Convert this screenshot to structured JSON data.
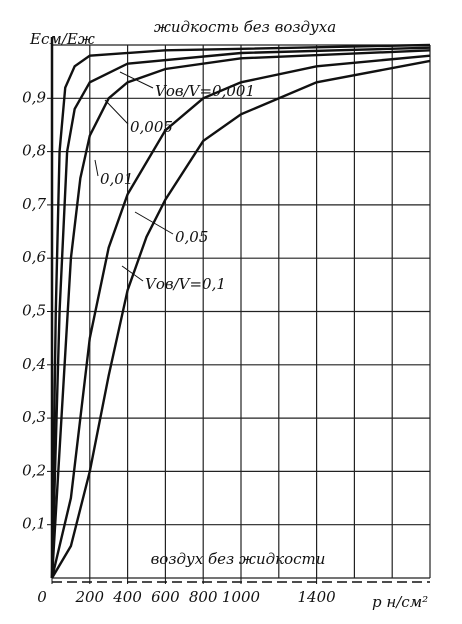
{
  "chart_data": {
    "type": "line",
    "title": "жидкость без воздуха",
    "y_label": "Eсм/Eж",
    "x_label": "p н/см²",
    "annotation": "воздух без жидкости",
    "xlim": [
      0,
      2000
    ],
    "ylim": [
      0,
      1.0
    ],
    "xticks": [
      0,
      200,
      400,
      600,
      800,
      1000,
      1400
    ],
    "xgrid": [
      0,
      200,
      400,
      600,
      800,
      1000,
      1200,
      1400,
      1600,
      1800,
      2000
    ],
    "yticks": [
      {
        "value": 0.1,
        "label": "0,1"
      },
      {
        "value": 0.2,
        "label": "0,2"
      },
      {
        "value": 0.3,
        "label": "0,3"
      },
      {
        "value": 0.4,
        "label": "0,4"
      },
      {
        "value": 0.5,
        "label": "0,5"
      },
      {
        "value": 0.6,
        "label": "0,6"
      },
      {
        "value": 0.7,
        "label": "0,7"
      },
      {
        "value": 0.8,
        "label": "0,8"
      },
      {
        "value": 0.9,
        "label": "0,9"
      }
    ],
    "ygrid": [
      0,
      0.1,
      0.2,
      0.3,
      0.4,
      0.5,
      0.6,
      0.7,
      0.8,
      0.9,
      1.0
    ],
    "grid": true,
    "color": "#111111",
    "series": [
      {
        "name": "Vов/V=0,001",
        "x": [
          0,
          20,
          40,
          70,
          120,
          200,
          600,
          2000
        ],
        "values": [
          0,
          0.5,
          0.8,
          0.92,
          0.96,
          0.98,
          0.99,
          1.0
        ]
      },
      {
        "name": "0,005",
        "x": [
          0,
          40,
          80,
          120,
          200,
          400,
          1000,
          2000
        ],
        "values": [
          0,
          0.5,
          0.8,
          0.88,
          0.93,
          0.965,
          0.985,
          0.995
        ]
      },
      {
        "name": "0,01",
        "x": [
          0,
          50,
          100,
          150,
          200,
          300,
          400,
          600,
          1000,
          2000
        ],
        "values": [
          0,
          0.3,
          0.6,
          0.75,
          0.83,
          0.9,
          0.93,
          0.955,
          0.975,
          0.99
        ]
      },
      {
        "name": "0,05",
        "x": [
          0,
          100,
          200,
          300,
          400,
          600,
          800,
          1000,
          1400,
          2000
        ],
        "values": [
          0,
          0.15,
          0.45,
          0.62,
          0.72,
          0.84,
          0.9,
          0.93,
          0.96,
          0.98
        ]
      },
      {
        "name": "Vов/V=0,1",
        "x": [
          0,
          100,
          200,
          300,
          400,
          500,
          600,
          800,
          1000,
          1400,
          2000
        ],
        "values": [
          0,
          0.06,
          0.2,
          0.38,
          0.54,
          0.64,
          0.71,
          0.82,
          0.87,
          0.93,
          0.97
        ]
      }
    ]
  }
}
